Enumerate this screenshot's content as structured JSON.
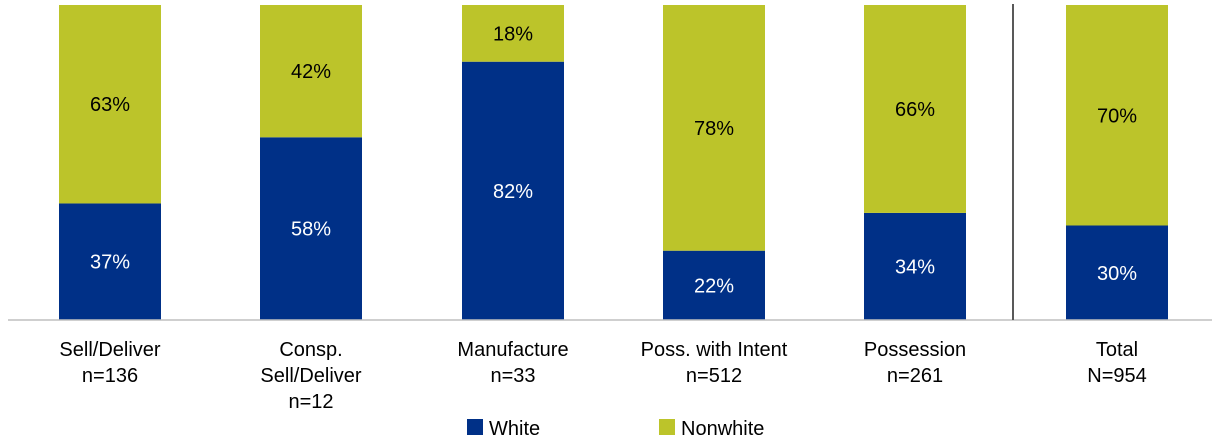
{
  "chart_data": {
    "type": "bar",
    "stacked": true,
    "percent": true,
    "categories": [
      [
        "Sell/Deliver",
        "n=136"
      ],
      [
        "Consp.",
        "Sell/Deliver",
        "n=12"
      ],
      [
        "Manufacture",
        "n=33"
      ],
      [
        "Poss. with Intent",
        "n=512"
      ],
      [
        "Possession",
        "n=261"
      ],
      [
        "Total",
        "N=954"
      ]
    ],
    "series": [
      {
        "name": "White",
        "color": "#003087",
        "values": [
          37,
          58,
          82,
          22,
          34,
          30
        ],
        "labels": [
          "37%",
          "58%",
          "82%",
          "22%",
          "34%",
          "30%"
        ]
      },
      {
        "name": "Nonwhite",
        "color": "#BCC42A",
        "values": [
          63,
          42,
          18,
          78,
          66,
          70
        ],
        "labels": [
          "63%",
          "42%",
          "18%",
          "78%",
          "66%",
          "70%"
        ]
      }
    ],
    "ylim": [
      0,
      100
    ],
    "grid": false,
    "separator_before_last": true,
    "legend_position": "bottom",
    "title": "",
    "xlabel": "",
    "ylabel": ""
  }
}
